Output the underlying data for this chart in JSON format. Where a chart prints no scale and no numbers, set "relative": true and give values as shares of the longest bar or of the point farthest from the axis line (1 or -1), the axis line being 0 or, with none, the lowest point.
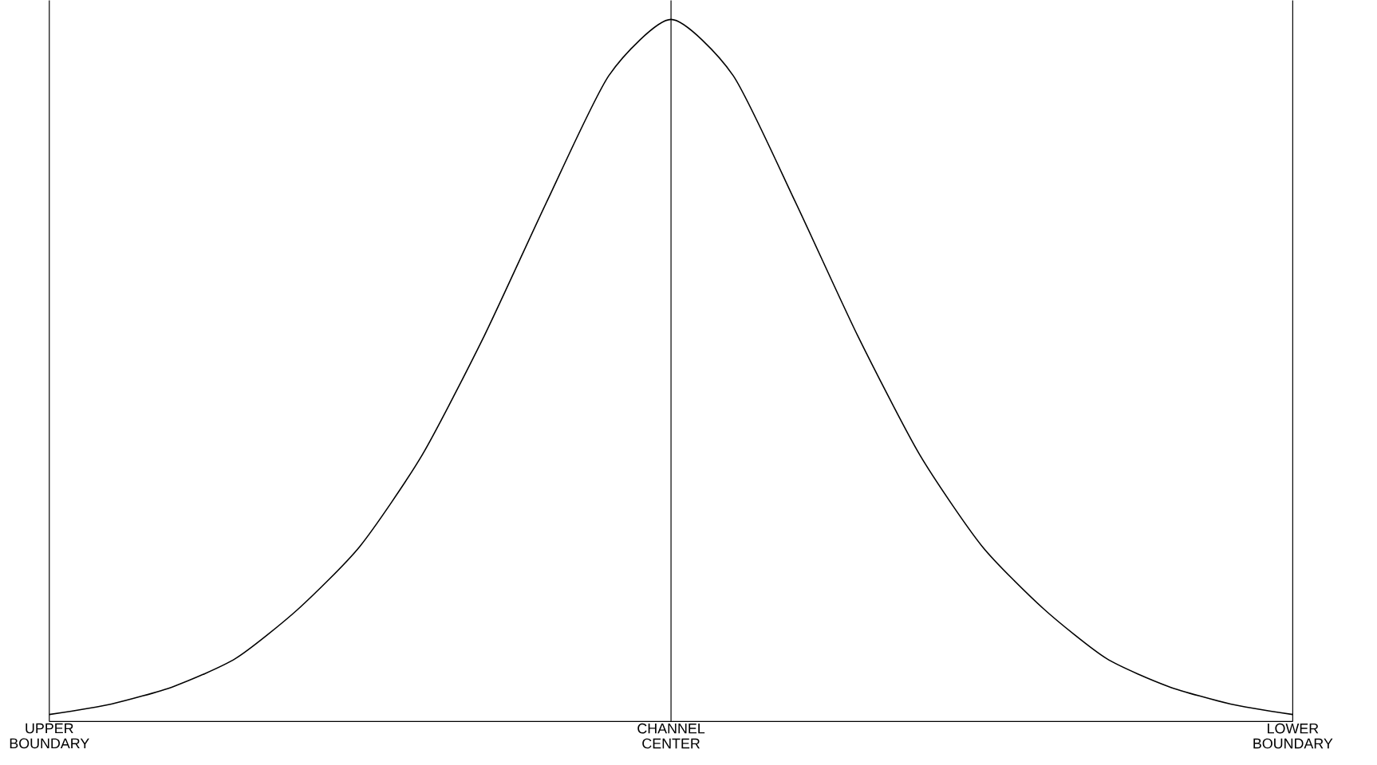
{
  "chart_data": {
    "type": "line",
    "relative": true,
    "color": "#000000",
    "grid": "x",
    "categories": [
      "UPPER BOUNDARY",
      null,
      null,
      null,
      null,
      null,
      null,
      null,
      null,
      null,
      "CHANNEL CENTER",
      null,
      null,
      null,
      null,
      null,
      null,
      null,
      null,
      null,
      "LOWER BOUNDARY"
    ],
    "values": [
      0.01,
      0.025,
      0.05,
      0.09,
      0.16,
      0.25,
      0.38,
      0.55,
      0.74,
      0.92,
      1,
      0.92,
      0.74,
      0.55,
      0.38,
      0.25,
      0.16,
      0.09,
      0.05,
      0.025,
      0.01
    ]
  }
}
